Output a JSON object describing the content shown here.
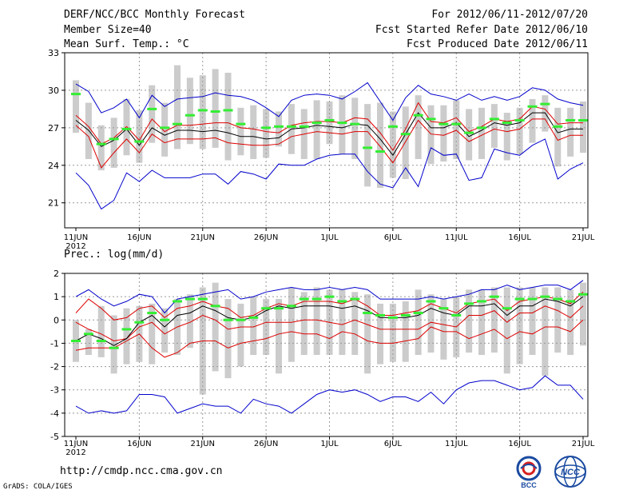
{
  "header": {
    "title": "DERF/NCC/BCC Monthly Forecast",
    "member_size": "Member Size=40",
    "variable": "Mean Surf. Temp.: °C",
    "period": "For 2012/06/11-2012/07/20",
    "started": "Fcst Started Refer Date 2012/06/10",
    "produced": "Fcst Produced Date 2012/06/11"
  },
  "footer": {
    "url": "http://cmdp.ncc.cma.gov.cn",
    "grads": "GrADS: COLA/IGES",
    "logo_bcc": "BCC",
    "logo_ncc": "NCC"
  },
  "colors": {
    "max_min": "#0000cc",
    "spread": "#dd0000",
    "mean": "#000000",
    "obs": "#33ee33",
    "box": "#cccccc",
    "grid": "#999999"
  },
  "chart_data": [
    {
      "type": "line",
      "title": "Mean Surf. Temp.: °C",
      "ylim": [
        19,
        33
      ],
      "yticks": [
        21,
        24,
        27,
        30,
        33
      ],
      "xlim": [
        0,
        40
      ],
      "xticks": [
        {
          "i": 0,
          "label": "11JUN",
          "sub": "2012"
        },
        {
          "i": 5,
          "label": "16JUN"
        },
        {
          "i": 10,
          "label": "21JUN"
        },
        {
          "i": 15,
          "label": "26JUN"
        },
        {
          "i": 20,
          "label": "1JUL"
        },
        {
          "i": 25,
          "label": "6JUL"
        },
        {
          "i": 30,
          "label": "11JUL"
        },
        {
          "i": 35,
          "label": "16JUL"
        },
        {
          "i": 40,
          "label": "21JUL"
        }
      ],
      "series": [
        {
          "name": "max",
          "values": [
            30.5,
            29.9,
            28.2,
            28.6,
            29.3,
            27.8,
            29.6,
            28.7,
            29.3,
            29.4,
            29.5,
            29.8,
            29.6,
            29.5,
            29.2,
            28.6,
            27.9,
            29.2,
            29.6,
            29.7,
            29.6,
            29.3,
            29.9,
            30.6,
            29.1,
            27.6,
            29.4,
            30.4,
            29.7,
            29.5,
            29.2,
            29.7,
            29.2,
            29.5,
            29.2,
            29.5,
            30.2,
            30.0,
            29.3,
            29.0,
            28.8
          ]
        },
        {
          "name": "upper",
          "values": [
            28.0,
            27.1,
            25.7,
            26.2,
            27.1,
            26.0,
            27.7,
            26.7,
            27.2,
            27.2,
            27.3,
            27.4,
            27.4,
            27.0,
            26.9,
            26.7,
            26.6,
            27.2,
            27.4,
            27.5,
            27.5,
            27.4,
            27.8,
            27.7,
            26.6,
            25.2,
            26.9,
            29.0,
            27.5,
            27.4,
            27.8,
            26.7,
            27.1,
            27.7,
            27.5,
            27.7,
            28.7,
            28.5,
            27.3,
            27.4,
            27.4
          ]
        },
        {
          "name": "mean",
          "values": [
            27.6,
            26.8,
            25.5,
            26.0,
            26.9,
            25.6,
            27.0,
            26.4,
            26.8,
            26.8,
            26.7,
            26.8,
            26.6,
            26.3,
            26.3,
            26.1,
            26.2,
            26.9,
            27.0,
            27.2,
            27.1,
            27.0,
            27.3,
            27.2,
            26.1,
            24.8,
            26.5,
            28.2,
            27.0,
            27.0,
            27.4,
            26.3,
            26.8,
            27.4,
            27.2,
            27.4,
            28.2,
            28.2,
            26.6,
            26.9,
            26.9
          ]
        },
        {
          "name": "lower",
          "values": [
            27.2,
            26.3,
            23.8,
            25.0,
            26.1,
            25.0,
            26.5,
            25.8,
            26.1,
            26.1,
            26.1,
            26.2,
            25.8,
            25.7,
            25.6,
            25.6,
            25.7,
            26.3,
            26.5,
            26.7,
            26.6,
            26.5,
            26.7,
            26.7,
            25.5,
            24.2,
            25.9,
            27.6,
            26.5,
            26.4,
            26.8,
            25.9,
            26.4,
            26.9,
            26.7,
            26.9,
            27.7,
            27.7,
            26.0,
            26.4,
            26.4
          ]
        },
        {
          "name": "min",
          "values": [
            23.4,
            22.4,
            20.5,
            21.2,
            23.4,
            22.7,
            23.6,
            23.0,
            23.0,
            23.0,
            23.3,
            23.3,
            22.5,
            23.5,
            23.3,
            22.9,
            24.1,
            24.0,
            24.0,
            24.5,
            24.8,
            24.9,
            24.9,
            23.5,
            22.5,
            22.2,
            23.8,
            22.3,
            25.4,
            24.8,
            24.9,
            22.8,
            23.0,
            25.3,
            25.0,
            24.8,
            25.6,
            26.1,
            22.9,
            23.7,
            24.2
          ]
        },
        {
          "name": "obs",
          "values": [
            29.7,
            null,
            25.7,
            26.1,
            26.9,
            25.9,
            28.5,
            27.0,
            27.3,
            28.0,
            28.4,
            28.3,
            28.4,
            27.3,
            null,
            27.0,
            27.1,
            27.1,
            27.1,
            27.4,
            27.6,
            27.4,
            27.3,
            25.4,
            25.1,
            27.1,
            26.5,
            28.0,
            27.7,
            27.3,
            27.3,
            26.6,
            27.0,
            27.7,
            27.4,
            27.6,
            28.7,
            28.9,
            27.1,
            27.6,
            27.6
          ]
        },
        {
          "name": "box_top",
          "values": [
            30.8,
            29.0,
            27.2,
            27.8,
            29.3,
            28.4,
            30.4,
            29.0,
            32.0,
            31.0,
            31.2,
            31.7,
            31.4,
            28.6,
            28.8,
            28.5,
            28.3,
            28.9,
            28.5,
            29.2,
            29.1,
            29.6,
            29.4,
            28.9,
            29.0,
            28.3,
            28.7,
            29.6,
            28.8,
            28.8,
            29.2,
            28.5,
            28.6,
            28.9,
            28.2,
            28.6,
            29.3,
            29.6,
            28.6,
            28.6,
            29.1
          ]
        },
        {
          "name": "box_bottom",
          "values": [
            26.6,
            24.5,
            23.6,
            23.8,
            24.8,
            24.2,
            25.8,
            24.7,
            25.3,
            25.7,
            25.3,
            25.4,
            24.4,
            24.8,
            24.5,
            24.6,
            25.5,
            24.9,
            24.5,
            24.5,
            25.7,
            24.9,
            24.5,
            22.3,
            22.2,
            23.0,
            22.9,
            24.5,
            24.1,
            24.3,
            24.5,
            24.4,
            24.5,
            25.4,
            24.4,
            24.9,
            25.8,
            26.7,
            23.9,
            24.7,
            25.0
          ]
        }
      ]
    },
    {
      "type": "line",
      "title": "Prec.: log(mm/d)",
      "ylim": [
        -5,
        2
      ],
      "yticks": [
        -5,
        -4,
        -3,
        -2,
        -1,
        0,
        1,
        2
      ],
      "xlim": [
        0,
        40
      ],
      "xticks": [
        {
          "i": 0,
          "label": "11JUN",
          "sub": "2012"
        },
        {
          "i": 5,
          "label": "16JUN"
        },
        {
          "i": 10,
          "label": "21JUN"
        },
        {
          "i": 15,
          "label": "26JUN"
        },
        {
          "i": 20,
          "label": "1JUL"
        },
        {
          "i": 25,
          "label": "6JUL"
        },
        {
          "i": 30,
          "label": "11JUL"
        },
        {
          "i": 35,
          "label": "16JUL"
        },
        {
          "i": 40,
          "label": "21JUL"
        }
      ],
      "series": [
        {
          "name": "max",
          "values": [
            1.0,
            1.3,
            0.9,
            0.6,
            0.8,
            1.1,
            1.0,
            0.3,
            0.9,
            1.0,
            1.1,
            1.2,
            1.3,
            0.9,
            1.0,
            1.2,
            1.3,
            1.4,
            1.3,
            1.3,
            1.4,
            1.3,
            1.4,
            1.3,
            0.9,
            0.9,
            0.9,
            0.9,
            1.0,
            0.9,
            1.0,
            1.1,
            1.3,
            1.3,
            1.5,
            1.3,
            1.4,
            1.5,
            1.5,
            1.3,
            1.7
          ]
        },
        {
          "name": "upper",
          "values": [
            0.3,
            0.9,
            0.5,
            0.0,
            0.1,
            0.5,
            0.6,
            0.1,
            0.5,
            0.6,
            0.8,
            0.6,
            0.5,
            0.1,
            0.2,
            0.5,
            0.7,
            0.6,
            0.8,
            0.8,
            0.8,
            0.7,
            0.9,
            0.6,
            0.2,
            0.2,
            0.3,
            0.4,
            0.7,
            0.5,
            0.3,
            0.7,
            0.8,
            0.9,
            0.4,
            0.8,
            0.9,
            1.0,
            0.9,
            0.7,
            1.2
          ]
        },
        {
          "name": "mean",
          "values": [
            -0.9,
            -0.6,
            -0.8,
            -1.1,
            -0.8,
            -0.1,
            0.2,
            -0.3,
            0.2,
            0.3,
            0.6,
            0.4,
            0.1,
            0.0,
            0.1,
            0.4,
            0.6,
            0.5,
            0.6,
            0.6,
            0.6,
            0.5,
            0.6,
            0.4,
            0.1,
            0.1,
            0.1,
            0.2,
            0.5,
            0.3,
            0.2,
            0.6,
            0.6,
            0.7,
            0.2,
            0.6,
            0.6,
            0.9,
            0.8,
            0.6,
            1.0
          ]
        },
        {
          "name": "lower",
          "values": [
            -0.1,
            -0.4,
            -0.6,
            -0.9,
            -0.8,
            -0.3,
            -0.1,
            -0.6,
            -0.3,
            -0.1,
            0.2,
            0.0,
            -0.4,
            -0.3,
            -0.3,
            -0.1,
            -0.1,
            -0.1,
            0.0,
            0.0,
            -0.1,
            -0.2,
            0.0,
            -0.2,
            -0.4,
            -0.4,
            -0.4,
            -0.4,
            -0.1,
            -0.2,
            -0.3,
            0.2,
            0.2,
            0.4,
            -0.1,
            0.3,
            0.3,
            0.6,
            0.4,
            0.1,
            0.6
          ]
        },
        {
          "name": "lower2",
          "values": [
            -1.3,
            -1.2,
            -1.2,
            -1.2,
            -0.9,
            -0.6,
            -1.2,
            -1.6,
            -1.4,
            -1.0,
            -0.9,
            -0.9,
            -1.2,
            -1.0,
            -0.9,
            -0.8,
            -0.6,
            -0.5,
            -0.6,
            -0.6,
            -0.8,
            -0.5,
            -0.6,
            -0.9,
            -1.0,
            -1.0,
            -0.9,
            -0.8,
            -0.3,
            -0.5,
            -0.5,
            -0.8,
            -0.6,
            -0.4,
            -0.8,
            -0.5,
            -0.6,
            -0.3,
            -0.3,
            -0.5,
            0.0
          ]
        },
        {
          "name": "min",
          "values": [
            -3.7,
            -4.0,
            -3.9,
            -4.0,
            -3.9,
            -3.2,
            -3.2,
            -3.3,
            -4.0,
            -3.8,
            -3.6,
            -3.7,
            -3.7,
            -4.0,
            -3.4,
            -3.6,
            -3.7,
            -4.0,
            -3.6,
            -3.2,
            -3.0,
            -3.1,
            -3.0,
            -3.2,
            -3.5,
            -3.3,
            -3.3,
            -3.5,
            -3.1,
            -3.6,
            -3.0,
            -2.7,
            -2.6,
            -2.6,
            -2.8,
            -3.0,
            -2.9,
            -2.4,
            -2.8,
            -2.8,
            -3.4
          ]
        },
        {
          "name": "obs",
          "values": [
            -0.9,
            -0.6,
            -0.9,
            -1.2,
            -0.4,
            -0.1,
            0.3,
            0.0,
            0.8,
            0.9,
            0.9,
            0.6,
            0.0,
            0.0,
            0.1,
            0.5,
            0.5,
            0.6,
            0.9,
            0.9,
            1.0,
            0.8,
            0.9,
            0.3,
            0.2,
            0.1,
            0.2,
            0.3,
            0.8,
            0.5,
            0.2,
            0.7,
            0.8,
            1.0,
            0.5,
            0.9,
            0.9,
            1.0,
            0.9,
            0.8,
            1.1
          ]
        },
        {
          "name": "box_top",
          "values": [
            0.0,
            -0.4,
            0.6,
            0.2,
            0.5,
            0.6,
            0.7,
            0.5,
            0.9,
            1.1,
            1.4,
            1.6,
            0.9,
            0.7,
            1.0,
            0.9,
            0.9,
            1.4,
            1.2,
            1.4,
            1.3,
            1.3,
            1.2,
            1.1,
            0.7,
            0.7,
            0.8,
            1.3,
            1.1,
            0.9,
            1.0,
            1.3,
            1.3,
            1.4,
            1.4,
            1.4,
            1.4,
            1.4,
            1.4,
            1.3,
            1.6
          ]
        },
        {
          "name": "box_bottom",
          "values": [
            -1.8,
            -1.5,
            -1.6,
            -2.3,
            -1.9,
            -1.8,
            -1.9,
            -1.4,
            -1.5,
            -1.2,
            -3.2,
            -2.2,
            -2.5,
            -2.0,
            -1.5,
            -1.5,
            -2.3,
            -1.8,
            -1.5,
            -1.5,
            -1.5,
            -1.5,
            -1.5,
            -2.3,
            -1.9,
            -1.8,
            -1.8,
            -1.5,
            -1.4,
            -1.7,
            -1.6,
            -1.4,
            -1.5,
            -1.4,
            -2.3,
            -1.9,
            -1.5,
            -2.4,
            -1.4,
            -1.5,
            -1.1
          ]
        }
      ]
    }
  ]
}
